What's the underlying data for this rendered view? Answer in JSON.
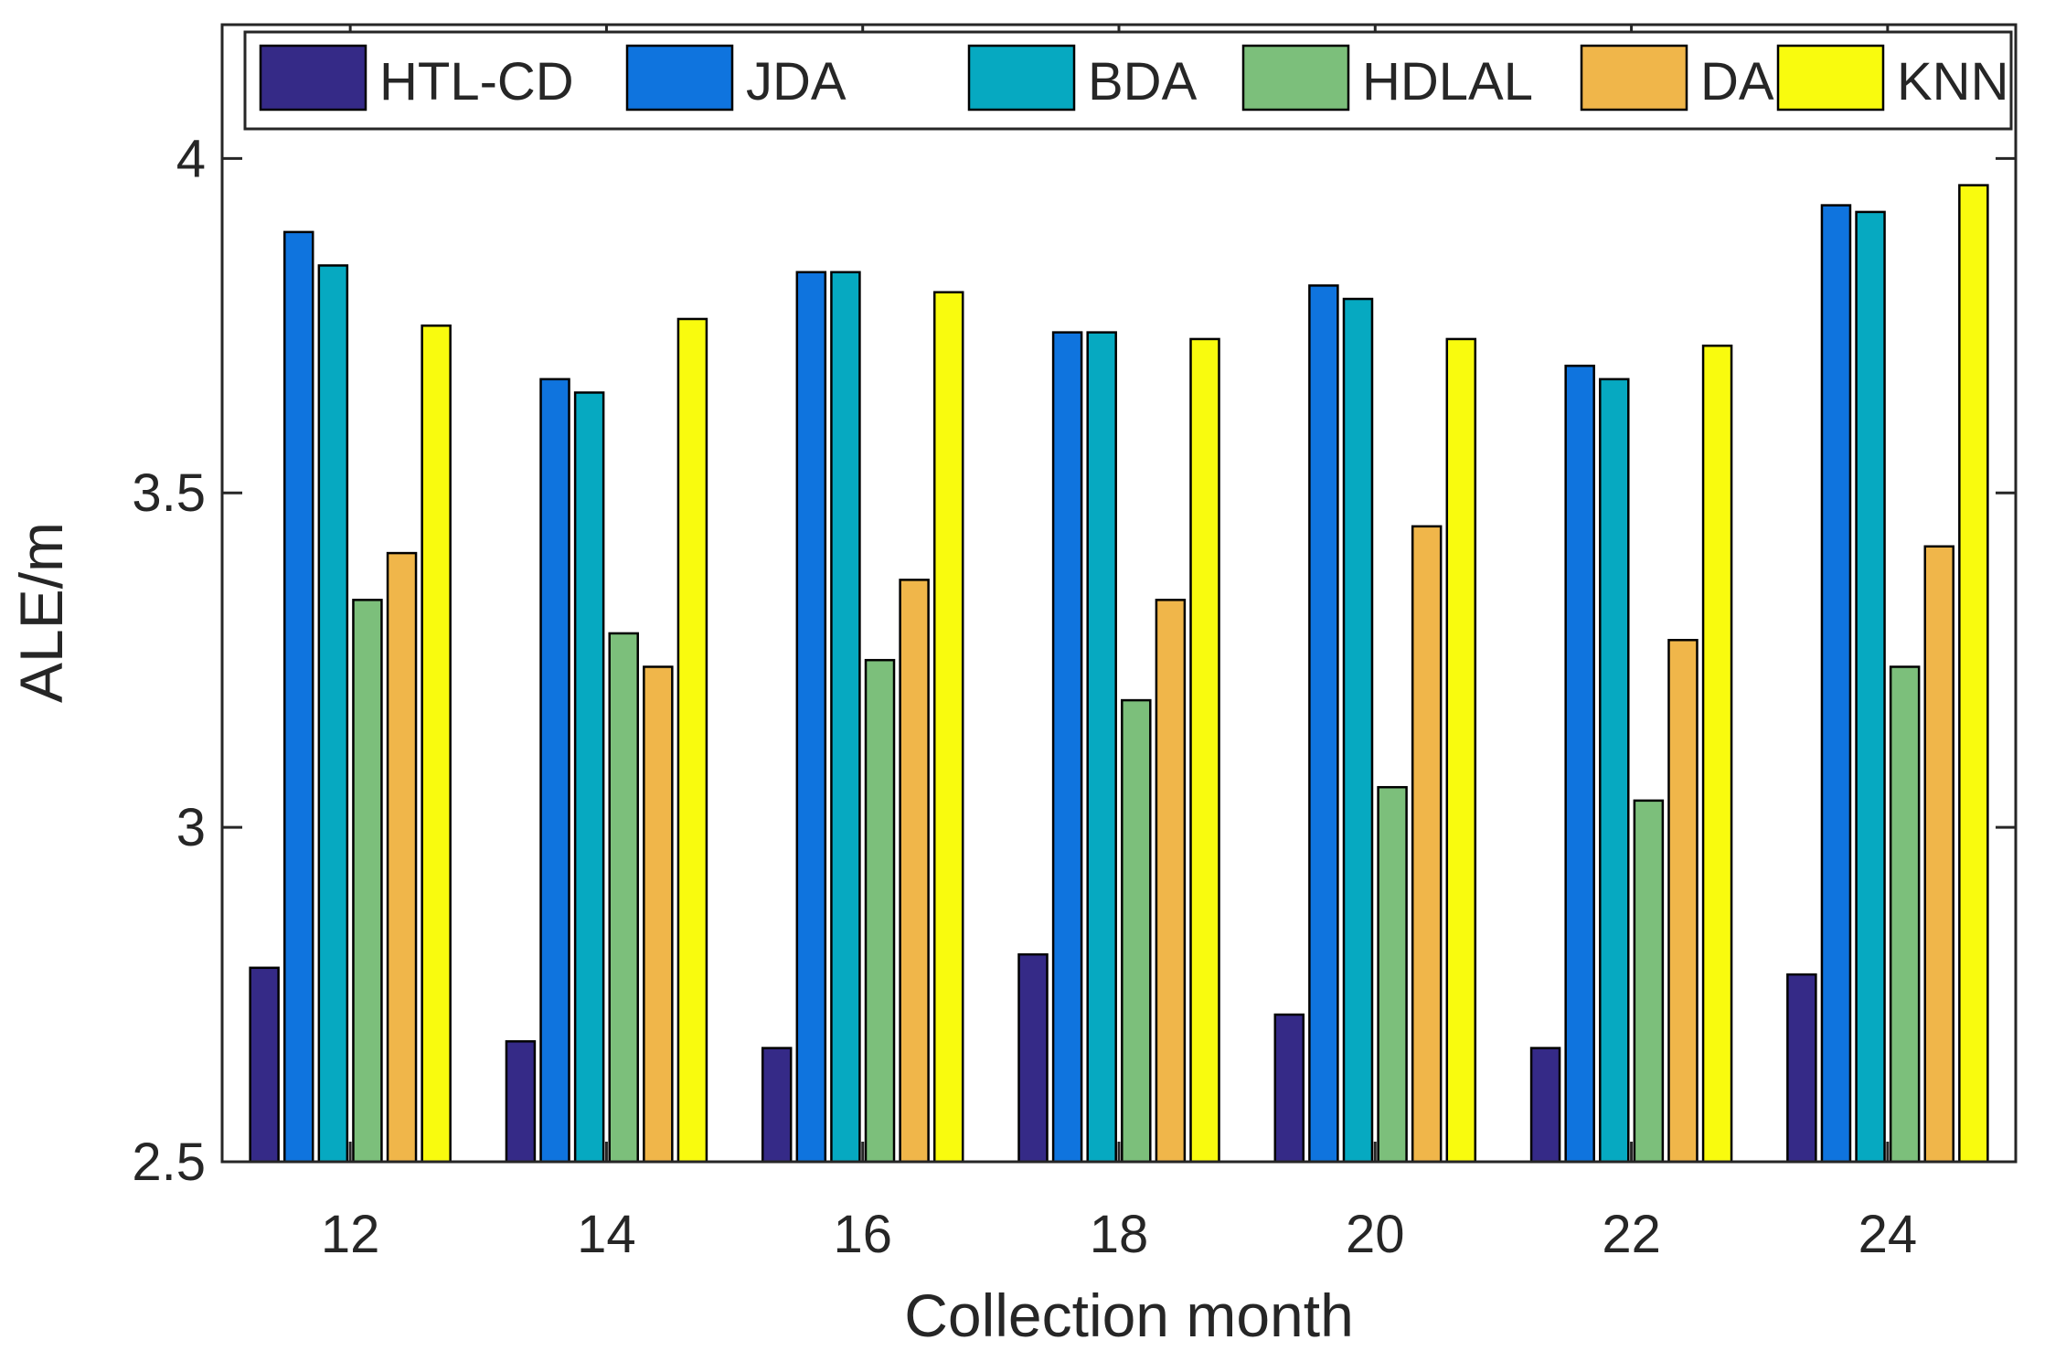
{
  "chart_data": {
    "type": "bar",
    "title": "",
    "xlabel": "Collection month",
    "ylabel": "ALE/m",
    "categories": [
      "12",
      "14",
      "16",
      "18",
      "20",
      "22",
      "24"
    ],
    "ylim": [
      2.5,
      4.2
    ],
    "yticks": [
      2.5,
      3,
      3.5,
      4
    ],
    "ytick_labels": [
      "2.5",
      "3",
      "3.5",
      "4"
    ],
    "grid": false,
    "legend_position": "top",
    "series": [
      {
        "name": "HTL-CD",
        "color": "#352a87",
        "values": [
          2.79,
          2.68,
          2.67,
          2.81,
          2.72,
          2.67,
          2.78
        ]
      },
      {
        "name": "JDA",
        "color": "#0f74de",
        "values": [
          3.89,
          3.67,
          3.83,
          3.74,
          3.81,
          3.69,
          3.93
        ]
      },
      {
        "name": "BDA",
        "color": "#06a9c1",
        "values": [
          3.84,
          3.65,
          3.83,
          3.74,
          3.79,
          3.67,
          3.92
        ]
      },
      {
        "name": "HDLAL",
        "color": "#7cbf7b",
        "values": [
          3.34,
          3.29,
          3.25,
          3.19,
          3.06,
          3.04,
          3.24
        ]
      },
      {
        "name": "DAMA",
        "color": "#f0b64a",
        "values": [
          3.41,
          3.24,
          3.37,
          3.34,
          3.45,
          3.28,
          3.42
        ]
      },
      {
        "name": "KNN",
        "color": "#f9fb0e",
        "values": [
          3.75,
          3.76,
          3.8,
          3.73,
          3.73,
          3.72,
          3.96
        ]
      }
    ]
  }
}
